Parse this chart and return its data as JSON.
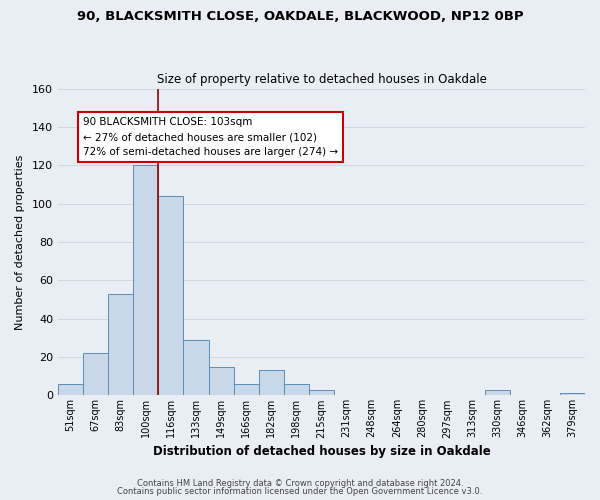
{
  "title": "90, BLACKSMITH CLOSE, OAKDALE, BLACKWOOD, NP12 0BP",
  "subtitle": "Size of property relative to detached houses in Oakdale",
  "xlabel": "Distribution of detached houses by size in Oakdale",
  "ylabel": "Number of detached properties",
  "bar_labels": [
    "51sqm",
    "67sqm",
    "83sqm",
    "100sqm",
    "116sqm",
    "133sqm",
    "149sqm",
    "166sqm",
    "182sqm",
    "198sqm",
    "215sqm",
    "231sqm",
    "248sqm",
    "264sqm",
    "280sqm",
    "297sqm",
    "313sqm",
    "330sqm",
    "346sqm",
    "362sqm",
    "379sqm"
  ],
  "bar_values": [
    6,
    22,
    53,
    120,
    104,
    29,
    15,
    6,
    13,
    6,
    3,
    0,
    0,
    0,
    0,
    0,
    0,
    3,
    0,
    0,
    1
  ],
  "bar_color": "#c8d8e8",
  "bar_edge_color": "#5b8db8",
  "ylim": [
    0,
    160
  ],
  "yticks": [
    0,
    20,
    40,
    60,
    80,
    100,
    120,
    140,
    160
  ],
  "property_label": "90 BLACKSMITH CLOSE: 103sqm",
  "annotation_line1": "← 27% of detached houses are smaller (102)",
  "annotation_line2": "72% of semi-detached houses are larger (274) →",
  "vline_position": 3.5,
  "footer_line1": "Contains HM Land Registry data © Crown copyright and database right 2024.",
  "footer_line2": "Contains public sector information licensed under the Open Government Licence v3.0.",
  "background_color": "#e8eef4",
  "plot_background_color": "#e8eef4",
  "grid_color": "#c8d4de"
}
